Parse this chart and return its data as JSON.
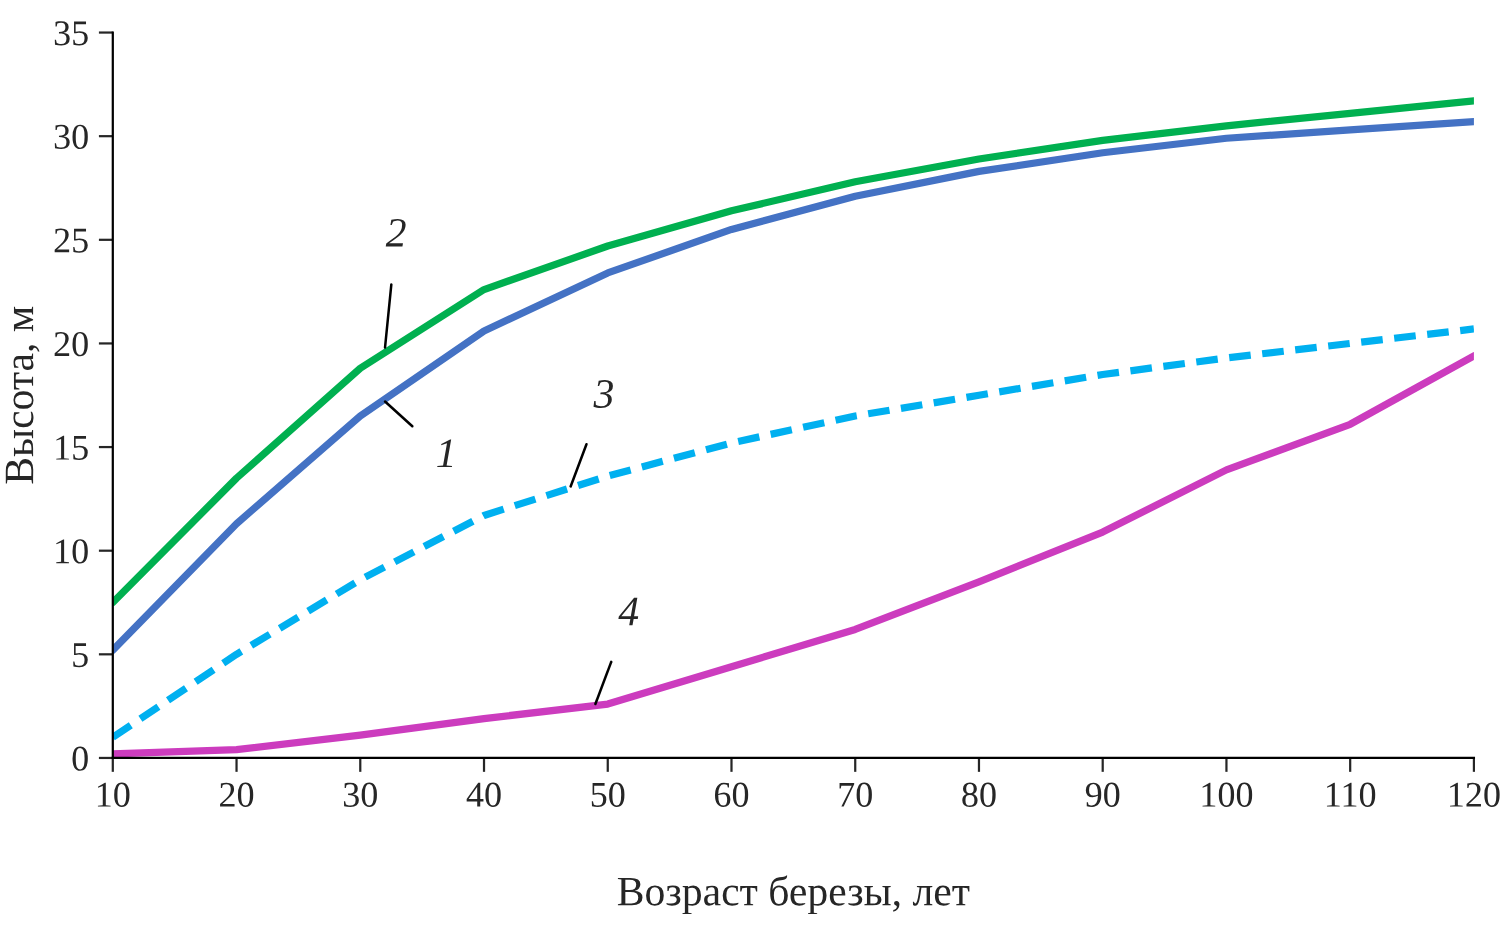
{
  "chart_data": {
    "type": "line",
    "xlabel": "Возраст березы, лет",
    "ylabel": "Высота, м",
    "x": [
      10,
      20,
      30,
      40,
      50,
      60,
      70,
      80,
      90,
      100,
      110,
      120
    ],
    "series": [
      {
        "color": "#4472c4",
        "line_style": "solid",
        "values": [
          5.2,
          11.3,
          16.5,
          20.6,
          23.4,
          25.5,
          27.1,
          28.3,
          29.2,
          29.9,
          30.3,
          30.7
        ]
      },
      {
        "color": "#00b050",
        "line_style": "solid",
        "values": [
          7.5,
          13.5,
          18.8,
          22.6,
          24.7,
          26.4,
          27.8,
          28.9,
          29.8,
          30.5,
          31.1,
          31.7
        ]
      },
      {
        "color": "#00b0f0",
        "line_style": "dashed",
        "values": [
          1.0,
          5.0,
          8.6,
          11.7,
          13.6,
          15.2,
          16.5,
          17.5,
          18.5,
          19.3,
          20.0,
          20.7
        ]
      },
      {
        "color": "#cc3cbe",
        "line_style": "solid",
        "values": [
          0.2,
          0.4,
          1.1,
          1.9,
          2.6,
          4.4,
          6.2,
          8.5,
          10.9,
          13.9,
          16.1,
          19.4
        ]
      }
    ],
    "annotations": [
      {
        "text": "1",
        "x": 32,
        "y": 17.2
      },
      {
        "text": "2",
        "x": 32,
        "y": 19.8
      },
      {
        "text": "3",
        "x": 47,
        "y": 13.1
      },
      {
        "text": "4",
        "x": 49,
        "y": 2.6
      }
    ],
    "xlim": [
      10,
      120
    ],
    "xticks": [
      10,
      20,
      30,
      40,
      50,
      60,
      70,
      80,
      90,
      100,
      110,
      120
    ],
    "ylim": [
      0,
      35
    ],
    "yticks": [
      0,
      5,
      10,
      15,
      20,
      25,
      30,
      35
    ],
    "grid": false,
    "legend": false,
    "marker": "none"
  }
}
